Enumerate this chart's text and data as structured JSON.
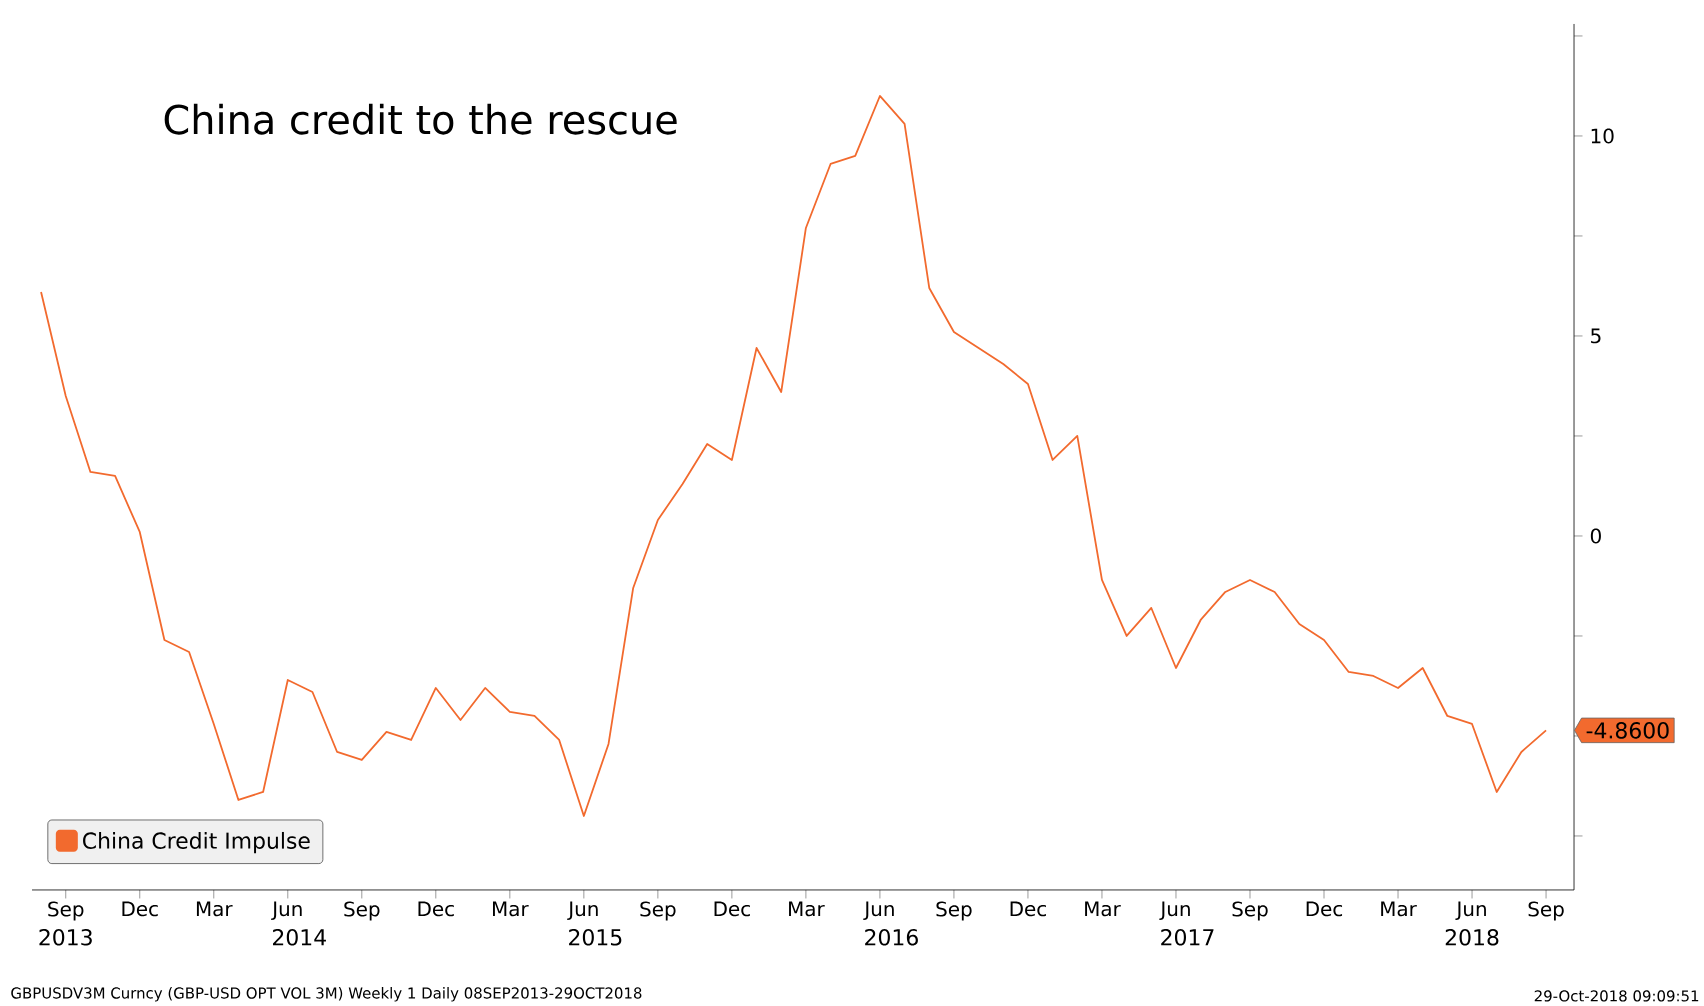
{
  "chart_data": {
    "type": "line",
    "title": "China credit to the rescue",
    "x": [
      "2013-08",
      "2013-09",
      "2013-10",
      "2013-11",
      "2013-12",
      "2014-01",
      "2014-02",
      "2014-03",
      "2014-04",
      "2014-05",
      "2014-06",
      "2014-07",
      "2014-08",
      "2014-09",
      "2014-10",
      "2014-11",
      "2014-12",
      "2015-01",
      "2015-02",
      "2015-03",
      "2015-04",
      "2015-05",
      "2015-06",
      "2015-07",
      "2015-08",
      "2015-09",
      "2015-10",
      "2015-11",
      "2015-12",
      "2016-01",
      "2016-02",
      "2016-03",
      "2016-04",
      "2016-05",
      "2016-06",
      "2016-07",
      "2016-08",
      "2016-09",
      "2016-10",
      "2016-11",
      "2016-12",
      "2017-01",
      "2017-02",
      "2017-03",
      "2017-04",
      "2017-05",
      "2017-06",
      "2017-07",
      "2017-08",
      "2017-09",
      "2017-10",
      "2017-11",
      "2017-12",
      "2018-01",
      "2018-02",
      "2018-03",
      "2018-04",
      "2018-05",
      "2018-06",
      "2018-07",
      "2018-08",
      "2018-09"
    ],
    "series": [
      {
        "name": "China Credit Impulse",
        "color": "#f26a2e",
        "values": [
          6.1,
          3.5,
          1.6,
          1.5,
          0.1,
          -2.6,
          -2.9,
          -4.7,
          -6.6,
          -6.4,
          -3.6,
          -3.9,
          -5.4,
          -5.6,
          -4.9,
          -5.1,
          -3.8,
          -4.6,
          -3.8,
          -4.4,
          -4.5,
          -5.1,
          -7.0,
          -5.2,
          -1.3,
          0.4,
          1.3,
          2.3,
          1.9,
          4.7,
          3.6,
          7.7,
          9.3,
          9.5,
          11.0,
          10.3,
          6.2,
          5.1,
          4.7,
          4.3,
          3.8,
          1.9,
          2.5,
          -1.1,
          -2.5,
          -1.8,
          -3.3,
          -2.1,
          -1.4,
          -1.1,
          -1.4,
          -2.2,
          -2.6,
          -3.4,
          -3.5,
          -3.8,
          -3.3,
          -4.5,
          -4.7,
          -6.4,
          -5.4,
          -4.86
        ],
        "value_labels": [
          null,
          null,
          null,
          null,
          null,
          null,
          null,
          null,
          null,
          null,
          null,
          null,
          null,
          null,
          null,
          null,
          null,
          null,
          null,
          null,
          null,
          null,
          null,
          null,
          null,
          null,
          null,
          null,
          null,
          null,
          null,
          null,
          null,
          null,
          null,
          null,
          null,
          null,
          null,
          null,
          null,
          null,
          null,
          null,
          null,
          null,
          null,
          null,
          null,
          null,
          null,
          null,
          null,
          null,
          null,
          null,
          null,
          null,
          null,
          null,
          null,
          "-4.8600"
        ]
      }
    ],
    "xlim": [
      "2013-07-20",
      "2018-10-05"
    ],
    "xticks": [
      {
        "value": "2013-09",
        "label": "Sep"
      },
      {
        "value": "2013-12",
        "label": "Dec"
      },
      {
        "value": "2014-03",
        "label": "Mar"
      },
      {
        "value": "2014-06",
        "label": "Jun"
      },
      {
        "value": "2014-09",
        "label": "Sep"
      },
      {
        "value": "2014-12",
        "label": "Dec"
      },
      {
        "value": "2015-03",
        "label": "Mar"
      },
      {
        "value": "2015-06",
        "label": "Jun"
      },
      {
        "value": "2015-09",
        "label": "Sep"
      },
      {
        "value": "2015-12",
        "label": "Dec"
      },
      {
        "value": "2016-03",
        "label": "Mar"
      },
      {
        "value": "2016-06",
        "label": "Jun"
      },
      {
        "value": "2016-09",
        "label": "Sep"
      },
      {
        "value": "2016-12",
        "label": "Dec"
      },
      {
        "value": "2017-03",
        "label": "Mar"
      },
      {
        "value": "2017-06",
        "label": "Jun"
      },
      {
        "value": "2017-09",
        "label": "Sep"
      },
      {
        "value": "2017-12",
        "label": "Dec"
      },
      {
        "value": "2018-03",
        "label": "Mar"
      },
      {
        "value": "2018-06",
        "label": "Jun"
      },
      {
        "value": "2018-09",
        "label": "Sep"
      }
    ],
    "ylim": [
      -8.85,
      12.8
    ],
    "yticks": [
      {
        "value": -7.5,
        "label": null
      },
      {
        "value": -5,
        "label": null
      },
      {
        "value": -2.5,
        "label": null
      },
      0,
      {
        "value": 2.5,
        "label": null
      },
      5,
      {
        "value": 7.5,
        "label": null
      },
      10,
      {
        "value": 12.5,
        "label": null
      }
    ],
    "x2lim": [
      "2013-07-20",
      "2018-10-05"
    ],
    "x2ticks": [
      {
        "value": "2013-09",
        "label": "2013"
      },
      {
        "value": "2014-06-15",
        "label": "2014"
      },
      {
        "value": "2015-06-15",
        "label": "2015"
      },
      {
        "value": "2016-06-15",
        "label": "2016"
      },
      {
        "value": "2017-06-15",
        "label": "2017"
      },
      {
        "value": "2018-06-01",
        "label": "2018"
      }
    ],
    "annotations": [
      "GBPUSDV3M Curncy (GBP-USD OPT VOL 3M) Weekly 1  Daily 08SEP2013-29OCT2018",
      "29-Oct-2018 09:09:51"
    ],
    "legend": "bottom left",
    "grid": false,
    "marker": "none",
    "line_style": "solid"
  }
}
